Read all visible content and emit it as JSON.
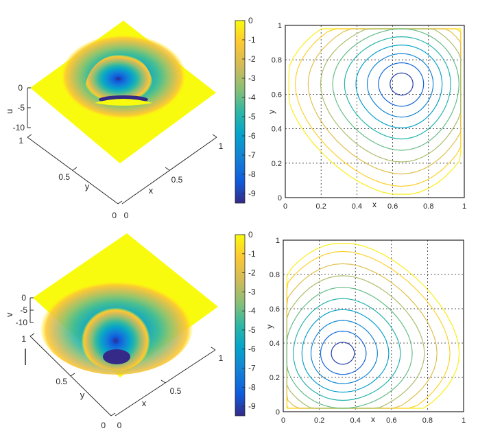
{
  "chart_data": [
    {
      "type": "surface",
      "zlabel": "u",
      "xlabel": "x",
      "ylabel": "y",
      "z_ticks": [
        "0",
        "-5",
        "-10"
      ],
      "x_ticks": [
        "0",
        "0.5",
        "1"
      ],
      "y_ticks": [
        "0",
        "0.5",
        "1"
      ],
      "xlim": [
        0,
        1
      ],
      "ylim": [
        0,
        1
      ],
      "zlim": [
        -10,
        0
      ],
      "minimum": {
        "x": 0.65,
        "y": 0.65,
        "value": -9.5
      },
      "colormap": "parula",
      "view": "3d"
    },
    {
      "type": "colorbar",
      "ticks": [
        "0",
        "-1",
        "-2",
        "-3",
        "-4",
        "-5",
        "-6",
        "-7",
        "-8",
        "-9"
      ],
      "range": [
        -9.5,
        0
      ]
    },
    {
      "type": "contour",
      "xlabel": "x",
      "ylabel": "y",
      "x_ticks": [
        "0",
        "0.2",
        "0.4",
        "0.6",
        "0.8",
        "1"
      ],
      "y_ticks": [
        "0",
        "0.2",
        "0.4",
        "0.6",
        "0.8",
        "1"
      ],
      "xlim": [
        0,
        1
      ],
      "ylim": [
        0,
        1
      ],
      "grid": true,
      "center": {
        "x": 0.65,
        "y": 0.66
      },
      "levels": [
        -0.3,
        -1,
        -2,
        -3,
        -4,
        -5,
        -6,
        -7,
        -8,
        -9
      ]
    },
    {
      "type": "surface",
      "zlabel": "v",
      "xlabel": "x",
      "ylabel": "y",
      "z_ticks": [
        "0",
        "-5",
        "-10"
      ],
      "x_ticks": [
        "0",
        "0.5",
        "1"
      ],
      "y_ticks": [
        "0",
        "0.5",
        "1"
      ],
      "xlim": [
        0,
        1
      ],
      "ylim": [
        0,
        1
      ],
      "zlim": [
        -10,
        0
      ],
      "minimum": {
        "x": 0.33,
        "y": 0.34,
        "value": -9.5
      },
      "colormap": "parula",
      "view": "3d"
    },
    {
      "type": "colorbar",
      "ticks": [
        "0",
        "-1",
        "-2",
        "-3",
        "-4",
        "-5",
        "-6",
        "-7",
        "-8",
        "-9"
      ],
      "range": [
        -9.5,
        0
      ]
    },
    {
      "type": "contour",
      "xlabel": "x",
      "ylabel": "y",
      "x_ticks": [
        "0",
        "0.2",
        "0.4",
        "0.6",
        "0.8",
        "1"
      ],
      "y_ticks": [
        "0",
        "0.2",
        "0.4",
        "0.6",
        "0.8",
        "1"
      ],
      "xlim": [
        0,
        1
      ],
      "ylim": [
        0,
        1
      ],
      "grid": true,
      "center": {
        "x": 0.33,
        "y": 0.34
      },
      "levels": [
        -0.3,
        -1,
        -2,
        -3,
        -4,
        -5,
        -6,
        -7,
        -8,
        -9
      ]
    }
  ],
  "colors": {
    "parula": [
      "#352a87",
      "#0f5cdd",
      "#1481d6",
      "#06a4ca",
      "#2eb7a4",
      "#87bf77",
      "#d1bb59",
      "#fec832",
      "#f9fb0e"
    ],
    "axis": "#262626",
    "grid": "#262626"
  }
}
